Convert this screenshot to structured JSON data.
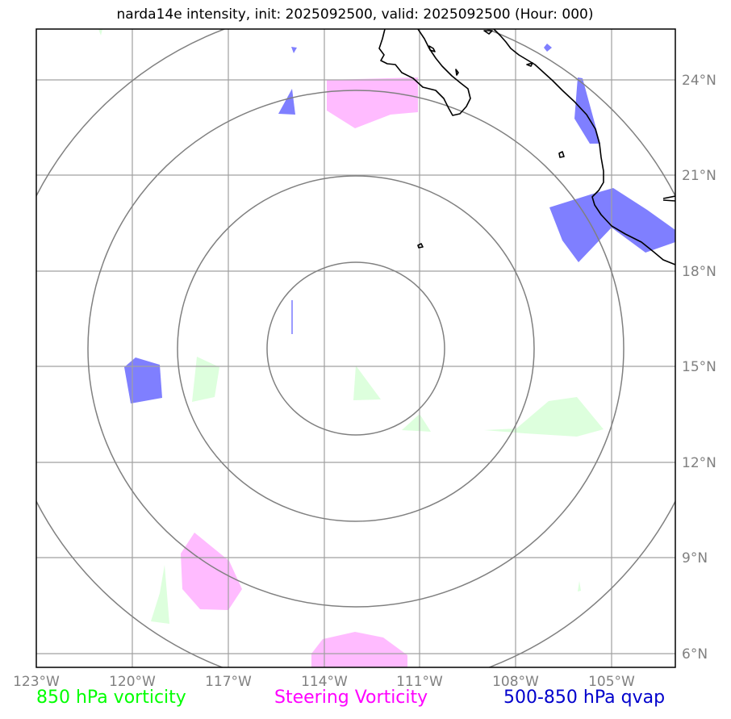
{
  "title": "narda14e intensity, init: 2025092500, valid: 2025092500 (Hour: 000)",
  "axes": {
    "lon_labels": [
      "123°W",
      "120°W",
      "117°W",
      "114°W",
      "111°W",
      "108°W",
      "105°W"
    ],
    "lat_labels": [
      "24°N",
      "21°N",
      "18°N",
      "15°N",
      "12°N",
      "9°N",
      "6°N"
    ]
  },
  "legend": {
    "vorticity_850": {
      "label": "850 hPa vorticity",
      "color": "#00ff00"
    },
    "steering_vorticity": {
      "label": "Steering Vorticity",
      "color": "#ff00ff"
    },
    "qvap_500_850": {
      "label": "500-850 hPa qvap",
      "color": "#0000cc"
    }
  },
  "colors": {
    "frame": "#000000",
    "grid": "#a0a0a0",
    "range_rings": "#808080",
    "coastline": "#000000",
    "vorticity_fill": "#ddffdd",
    "steering_fill": "#ffbbff",
    "qvap_fill": "#7f7fff"
  }
}
